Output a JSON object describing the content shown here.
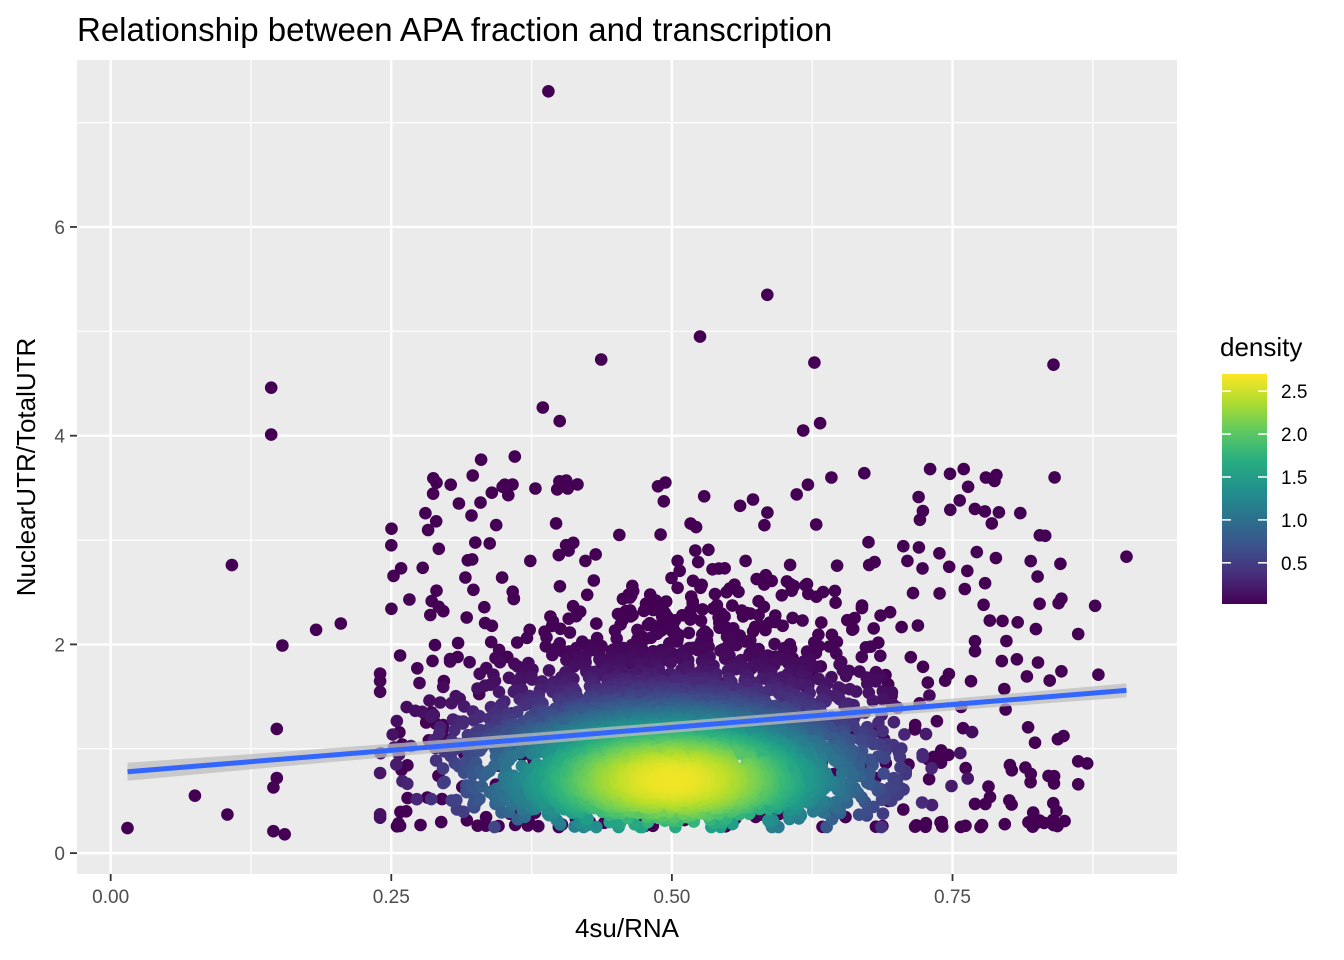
{
  "chart_data": {
    "type": "scatter",
    "title": "Relationship between APA fraction and transcription",
    "xlabel": "4su/RNA",
    "ylabel": "NuclearUTR/TotalUTR",
    "xlim": [
      -0.03,
      0.95
    ],
    "ylim": [
      -0.2,
      7.6
    ],
    "x_ticks": [
      0.0,
      0.25,
      0.5,
      0.75
    ],
    "x_tick_labels": [
      "0.00",
      "0.25",
      "0.50",
      "0.75"
    ],
    "y_ticks": [
      0,
      2,
      4,
      6
    ],
    "y_tick_labels": [
      "0",
      "2",
      "4",
      "6"
    ],
    "grid": true,
    "background": "#ebebeb",
    "legend": {
      "title": "density",
      "placement": "right",
      "breaks": [
        0.5,
        1.0,
        1.5,
        2.0,
        2.5
      ],
      "break_labels": [
        "0.5",
        "1.0",
        "1.5",
        "2.0",
        "2.5"
      ],
      "range": [
        0.02,
        2.7
      ],
      "colormap": "viridis"
    },
    "colors": {
      "low": "#440154",
      "mid": "#21918c",
      "high": "#fde725",
      "trend": "#3366ff",
      "confidence_band": "#bdbdbd"
    },
    "trend_line": {
      "method": "linear fit",
      "x": [
        0.015,
        0.905
      ],
      "y": [
        0.78,
        1.56
      ]
    },
    "cloud": {
      "description": "dense core of several thousand genes; modal density near x 0.50, y 0.70",
      "center_x": 0.5,
      "center_y": 0.7,
      "core_x_range": [
        0.27,
        0.73
      ],
      "core_y_range": [
        0.25,
        2.6
      ]
    },
    "highlighted_points": [
      {
        "x": 0.39,
        "y": 7.3
      },
      {
        "x": 0.585,
        "y": 5.35
      },
      {
        "x": 0.525,
        "y": 4.95
      },
      {
        "x": 0.437,
        "y": 4.73
      },
      {
        "x": 0.627,
        "y": 4.7
      },
      {
        "x": 0.84,
        "y": 4.68
      },
      {
        "x": 0.143,
        "y": 4.46
      },
      {
        "x": 0.143,
        "y": 4.01
      },
      {
        "x": 0.385,
        "y": 4.27
      },
      {
        "x": 0.4,
        "y": 4.14
      },
      {
        "x": 0.632,
        "y": 4.12
      },
      {
        "x": 0.617,
        "y": 4.05
      },
      {
        "x": 0.108,
        "y": 2.76
      },
      {
        "x": 0.905,
        "y": 2.84
      },
      {
        "x": 0.153,
        "y": 1.99
      },
      {
        "x": 0.183,
        "y": 2.14
      },
      {
        "x": 0.205,
        "y": 2.2
      },
      {
        "x": 0.25,
        "y": 2.95
      },
      {
        "x": 0.148,
        "y": 1.19
      },
      {
        "x": 0.075,
        "y": 0.55
      },
      {
        "x": 0.015,
        "y": 0.24
      },
      {
        "x": 0.104,
        "y": 0.37
      },
      {
        "x": 0.145,
        "y": 0.21
      },
      {
        "x": 0.155,
        "y": 0.18
      },
      {
        "x": 0.148,
        "y": 0.72
      },
      {
        "x": 0.145,
        "y": 0.63
      },
      {
        "x": 0.877,
        "y": 2.37
      },
      {
        "x": 0.862,
        "y": 2.1
      },
      {
        "x": 0.88,
        "y": 1.71
      },
      {
        "x": 0.862,
        "y": 0.88
      },
      {
        "x": 0.87,
        "y": 0.86
      },
      {
        "x": 0.862,
        "y": 0.66
      },
      {
        "x": 0.785,
        "y": 3.16
      },
      {
        "x": 0.76,
        "y": 3.68
      },
      {
        "x": 0.73,
        "y": 3.68
      },
      {
        "x": 0.748,
        "y": 3.29
      },
      {
        "x": 0.33,
        "y": 3.77
      },
      {
        "x": 0.36,
        "y": 3.8
      },
      {
        "x": 0.351,
        "y": 3.53
      },
      {
        "x": 0.29,
        "y": 3.18
      }
    ]
  }
}
